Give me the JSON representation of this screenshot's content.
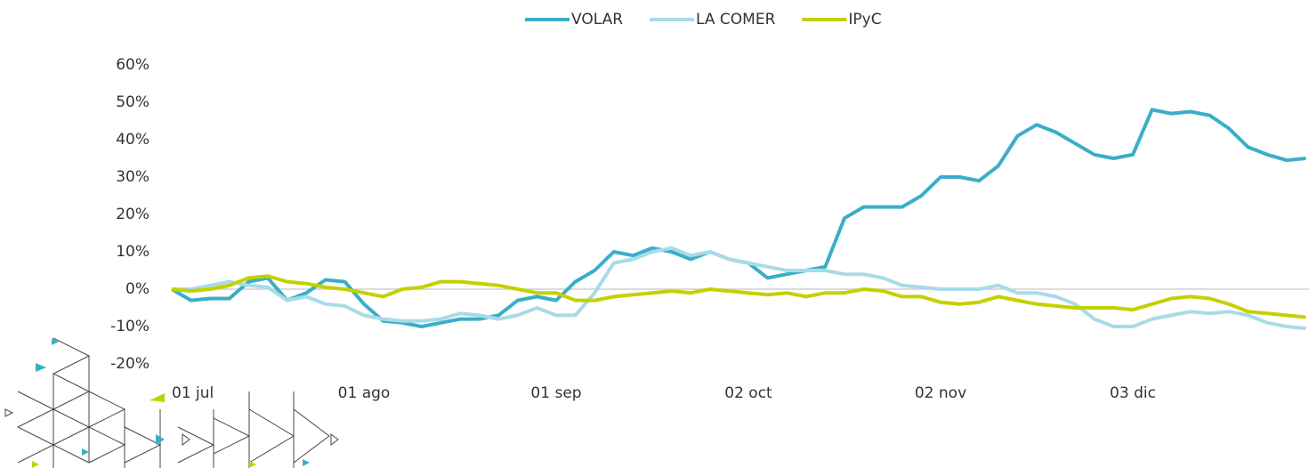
{
  "chart_data": {
    "type": "line",
    "categories": [
      "01 jul",
      null,
      null,
      null,
      null,
      null,
      null,
      null,
      null,
      null,
      "01 ago",
      null,
      null,
      null,
      null,
      null,
      null,
      null,
      null,
      null,
      "01 sep",
      null,
      null,
      null,
      null,
      null,
      null,
      null,
      null,
      null,
      "02 oct",
      null,
      null,
      null,
      null,
      null,
      null,
      null,
      null,
      null,
      "02 nov",
      null,
      null,
      null,
      null,
      null,
      null,
      null,
      null,
      null,
      "03 dic",
      null,
      null,
      null,
      null,
      null,
      null,
      null,
      null,
      null
    ],
    "series": [
      {
        "name": "VOLAR",
        "color": "#3aaec8",
        "values": [
          0,
          -3,
          -2.5,
          -2.5,
          2,
          3,
          -3,
          -1,
          2.5,
          2,
          -4,
          -8.5,
          -9,
          -10,
          -9,
          -8,
          -8,
          -7,
          -3,
          -2,
          -3,
          2,
          5,
          10,
          9,
          11,
          10,
          8,
          10,
          8,
          7,
          3,
          4,
          5,
          6,
          19,
          22,
          22,
          22,
          25,
          30,
          30,
          29,
          33,
          41,
          44,
          42,
          39,
          36,
          35,
          36,
          48,
          47,
          47.5,
          46.5,
          43,
          38,
          36,
          34.5,
          35
        ]
      },
      {
        "name": "LA COMER",
        "color": "#a8dbe8",
        "values": [
          0,
          0,
          1,
          2,
          1,
          0.5,
          -3,
          -2,
          -4,
          -4.5,
          -7,
          -8,
          -8.5,
          -8.5,
          -8,
          -6.5,
          -7,
          -8,
          -7,
          -5,
          -7,
          -7,
          -1,
          7,
          8,
          10,
          11,
          9,
          10,
          8,
          7,
          6,
          5,
          5,
          5,
          4,
          4,
          3,
          1,
          0.5,
          0,
          0,
          0,
          1,
          -1,
          -1,
          -2,
          -4,
          -8,
          -10,
          -10,
          -8,
          -7,
          -6,
          -6.5,
          -6,
          -7,
          -9,
          -10,
          -10.5
        ]
      },
      {
        "name": "IPyC",
        "color": "#c4d100",
        "values": [
          0,
          -0.5,
          0,
          1,
          3,
          3.5,
          2,
          1.5,
          0.5,
          0,
          -1,
          -2,
          0,
          0.5,
          2,
          2,
          1.5,
          1,
          0,
          -1,
          -1,
          -3,
          -3,
          -2,
          -1.5,
          -1,
          -0.5,
          -1,
          0,
          -0.5,
          -1,
          -1.5,
          -1,
          -2,
          -1,
          -1,
          0,
          -0.5,
          -2,
          -2,
          -3.5,
          -4,
          -3.5,
          -2,
          -3,
          -4,
          -4.5,
          -5,
          -5,
          -5,
          -5.5,
          -4,
          -2.5,
          -2,
          -2.5,
          -4,
          -6,
          -6.5,
          -7,
          -7.5
        ]
      }
    ],
    "ylim": [
      -20,
      60
    ],
    "yticks": [
      {
        "value": -20,
        "label": "-20%"
      },
      {
        "value": -10,
        "label": "-10%"
      },
      {
        "value": 0,
        "label": "0%"
      },
      {
        "value": 10,
        "label": "10%"
      },
      {
        "value": 20,
        "label": "20%"
      },
      {
        "value": 30,
        "label": "30%"
      },
      {
        "value": 40,
        "label": "40%"
      },
      {
        "value": 50,
        "label": "50%"
      },
      {
        "value": 60,
        "label": "60%"
      }
    ],
    "legend": "top"
  }
}
